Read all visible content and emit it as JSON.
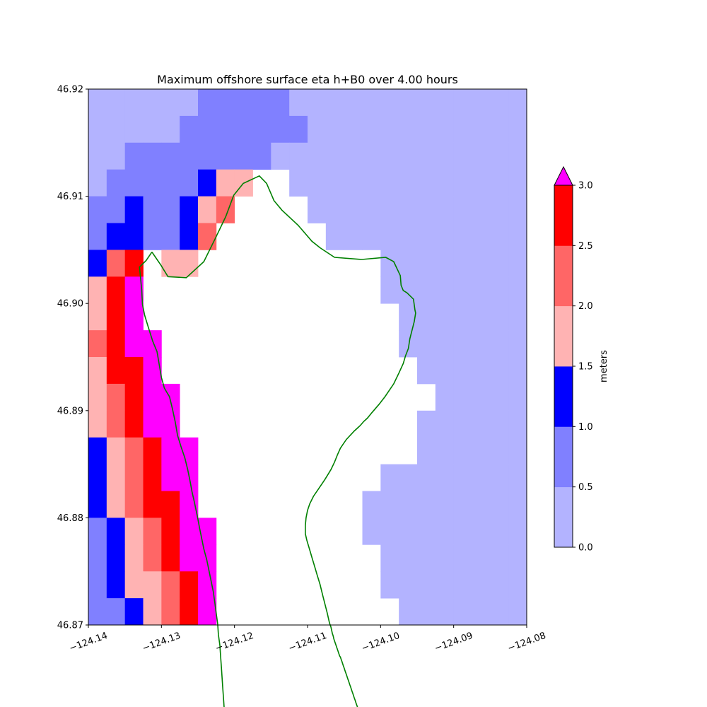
{
  "chart_data": {
    "type": "heatmap",
    "title": "Maximum offshore surface eta h+B0 over 4.00 hours",
    "xlabel": "",
    "ylabel": "",
    "xlim": [
      -124.14,
      -124.08
    ],
    "ylim": [
      46.87,
      46.92
    ],
    "x_ticks": [
      -124.14,
      -124.13,
      -124.12,
      -124.11,
      -124.1,
      -124.09,
      -124.08
    ],
    "x_tick_labels": [
      "−124.14",
      "−124.13",
      "−124.12",
      "−124.11",
      "−124.10",
      "−124.09",
      "−124.08"
    ],
    "y_ticks": [
      46.87,
      46.88,
      46.89,
      46.9,
      46.91,
      46.92
    ],
    "y_tick_labels": [
      "46.87",
      "46.88",
      "46.89",
      "46.90",
      "46.91",
      "46.92"
    ],
    "grid": false,
    "grid_cell_size_deg": 0.0025,
    "grid_columns": 24,
    "grid_rows": 20,
    "level_legend": "0=0.0-0.5, 1=0.5-1.0, 2=1.0-1.5, 3=1.5-2.0, 4=2.0-2.5, 5=2.5-3.0, 6=>3.0, -1=dry land (no data)",
    "cell_levels_rows_from_top": [
      [
        0,
        0,
        0,
        0,
        0,
        0,
        1,
        1,
        1,
        1,
        1,
        0,
        0,
        0,
        0,
        0,
        0,
        0,
        0,
        0,
        0,
        0,
        0,
        0
      ],
      [
        0,
        0,
        0,
        0,
        0,
        1,
        1,
        1,
        1,
        1,
        1,
        1,
        0,
        0,
        0,
        0,
        0,
        0,
        0,
        0,
        0,
        0,
        0,
        0
      ],
      [
        0,
        0,
        1,
        1,
        1,
        1,
        1,
        1,
        1,
        1,
        0,
        0,
        0,
        0,
        0,
        0,
        0,
        0,
        0,
        0,
        0,
        0,
        0,
        0
      ],
      [
        0,
        1,
        1,
        1,
        1,
        1,
        2,
        3,
        3,
        -1,
        -1,
        0,
        0,
        0,
        0,
        0,
        0,
        0,
        0,
        0,
        0,
        0,
        0,
        0
      ],
      [
        1,
        1,
        2,
        1,
        1,
        2,
        3,
        4,
        -1,
        -1,
        -1,
        -1,
        0,
        0,
        0,
        0,
        0,
        0,
        0,
        0,
        0,
        0,
        0,
        0
      ],
      [
        1,
        2,
        2,
        1,
        1,
        2,
        4,
        -1,
        -1,
        -1,
        -1,
        -1,
        -1,
        0,
        0,
        0,
        0,
        0,
        0,
        0,
        0,
        0,
        0,
        0
      ],
      [
        2,
        4,
        5,
        -1,
        3,
        3,
        -1,
        -1,
        -1,
        -1,
        -1,
        -1,
        -1,
        -1,
        -1,
        -1,
        0,
        0,
        0,
        0,
        0,
        0,
        0,
        0
      ],
      [
        3,
        5,
        6,
        -1,
        -1,
        -1,
        -1,
        -1,
        -1,
        -1,
        -1,
        -1,
        -1,
        -1,
        -1,
        -1,
        0,
        0,
        0,
        0,
        0,
        0,
        0,
        0
      ],
      [
        3,
        5,
        6,
        -1,
        -1,
        -1,
        -1,
        -1,
        -1,
        -1,
        -1,
        -1,
        -1,
        -1,
        -1,
        -1,
        -1,
        0,
        0,
        0,
        0,
        0,
        0,
        0
      ],
      [
        4,
        5,
        6,
        6,
        -1,
        -1,
        -1,
        -1,
        -1,
        -1,
        -1,
        -1,
        -1,
        -1,
        -1,
        -1,
        -1,
        0,
        0,
        0,
        0,
        0,
        0,
        0
      ],
      [
        3,
        5,
        5,
        6,
        -1,
        -1,
        -1,
        -1,
        -1,
        -1,
        -1,
        -1,
        -1,
        -1,
        -1,
        -1,
        -1,
        -1,
        0,
        0,
        0,
        0,
        0,
        0
      ],
      [
        3,
        4,
        5,
        6,
        6,
        -1,
        -1,
        -1,
        -1,
        -1,
        -1,
        -1,
        -1,
        -1,
        -1,
        -1,
        -1,
        -1,
        -1,
        0,
        0,
        0,
        0,
        0
      ],
      [
        3,
        4,
        5,
        6,
        6,
        -1,
        -1,
        -1,
        -1,
        -1,
        -1,
        -1,
        -1,
        -1,
        -1,
        -1,
        -1,
        -1,
        0,
        0,
        0,
        0,
        0,
        0
      ],
      [
        2,
        3,
        4,
        5,
        6,
        6,
        -1,
        -1,
        -1,
        -1,
        -1,
        -1,
        -1,
        -1,
        -1,
        -1,
        -1,
        -1,
        0,
        0,
        0,
        0,
        0,
        0
      ],
      [
        2,
        3,
        4,
        5,
        6,
        6,
        -1,
        -1,
        -1,
        -1,
        -1,
        -1,
        -1,
        -1,
        -1,
        -1,
        0,
        0,
        0,
        0,
        0,
        0,
        0,
        0
      ],
      [
        2,
        3,
        4,
        5,
        5,
        6,
        -1,
        -1,
        -1,
        -1,
        -1,
        -1,
        -1,
        -1,
        -1,
        0,
        0,
        0,
        0,
        0,
        0,
        0,
        0,
        0
      ],
      [
        1,
        2,
        3,
        4,
        5,
        6,
        6,
        -1,
        -1,
        -1,
        -1,
        -1,
        -1,
        -1,
        -1,
        0,
        0,
        0,
        0,
        0,
        0,
        0,
        0,
        0
      ],
      [
        1,
        2,
        3,
        4,
        5,
        6,
        6,
        -1,
        -1,
        -1,
        -1,
        -1,
        -1,
        -1,
        -1,
        -1,
        0,
        0,
        0,
        0,
        0,
        0,
        0,
        0
      ],
      [
        1,
        2,
        3,
        3,
        4,
        5,
        6,
        -1,
        -1,
        -1,
        -1,
        -1,
        -1,
        -1,
        -1,
        -1,
        0,
        0,
        0,
        0,
        0,
        0,
        0,
        0
      ],
      [
        1,
        1,
        2,
        3,
        4,
        5,
        6,
        -1,
        -1,
        -1,
        -1,
        -1,
        -1,
        -1,
        -1,
        -1,
        -1,
        0,
        0,
        0,
        0,
        0,
        0,
        0
      ]
    ],
    "coastline": [
      [
        -124.1313,
        46.9048
      ],
      [
        -124.1306,
        46.9041
      ],
      [
        -124.1301,
        46.9036
      ],
      [
        -124.1291,
        46.9025
      ],
      [
        -124.1266,
        46.9024
      ],
      [
        -124.1242,
        46.9039
      ],
      [
        -124.1226,
        46.9061
      ],
      [
        -124.1212,
        46.9081
      ],
      [
        -124.1201,
        46.9101
      ],
      [
        -124.1188,
        46.9112
      ],
      [
        -124.1166,
        46.9119
      ],
      [
        -124.1156,
        46.9112
      ],
      [
        -124.1146,
        46.9096
      ],
      [
        -124.1135,
        46.9087
      ],
      [
        -124.1113,
        46.9073
      ],
      [
        -124.1094,
        46.9058
      ],
      [
        -124.1083,
        46.9052
      ],
      [
        -124.1063,
        46.9043
      ],
      [
        -124.1026,
        46.9041
      ],
      [
        -124.0993,
        46.9043
      ],
      [
        -124.0982,
        46.9039
      ],
      [
        -124.0973,
        46.9026
      ],
      [
        -124.0972,
        46.9017
      ],
      [
        -124.0969,
        46.9012
      ],
      [
        -124.0964,
        46.901
      ],
      [
        -124.0955,
        46.9004
      ],
      [
        -124.0953,
        46.8994
      ],
      [
        -124.0952,
        46.8991
      ],
      [
        -124.0954,
        46.8983
      ],
      [
        -124.0957,
        46.8975
      ],
      [
        -124.096,
        46.8967
      ],
      [
        -124.0962,
        46.8958
      ],
      [
        -124.0966,
        46.8951
      ],
      [
        -124.0969,
        46.8944
      ],
      [
        -124.0975,
        46.8935
      ],
      [
        -124.0982,
        46.8925
      ],
      [
        -124.0994,
        46.8913
      ],
      [
        -124.1002,
        46.8906
      ],
      [
        -124.1012,
        46.8898
      ],
      [
        -124.1018,
        46.8893
      ],
      [
        -124.1023,
        46.889
      ],
      [
        -124.1028,
        46.8886
      ],
      [
        -124.1036,
        46.8881
      ],
      [
        -124.1047,
        46.8873
      ],
      [
        -124.1052,
        46.8868
      ],
      [
        -124.1055,
        46.8865
      ],
      [
        -124.1059,
        46.8859
      ],
      [
        -124.1063,
        46.8852
      ],
      [
        -124.1068,
        46.8845
      ],
      [
        -124.1076,
        46.8836
      ],
      [
        -124.1083,
        46.8829
      ],
      [
        -124.1092,
        46.882
      ],
      [
        -124.1097,
        46.8813
      ],
      [
        -124.11,
        46.8807
      ],
      [
        -124.1102,
        46.88
      ],
      [
        -124.1103,
        46.8793
      ],
      [
        -124.1103,
        46.8785
      ],
      [
        -124.1101,
        46.8779
      ],
      [
        -124.1097,
        46.877
      ],
      [
        -124.1094,
        46.8763
      ],
      [
        -124.109,
        46.8754
      ],
      [
        -124.1087,
        46.8747
      ],
      [
        -124.1083,
        46.8738
      ],
      [
        -124.1079,
        46.8727
      ],
      [
        -124.1076,
        46.8719
      ],
      [
        -124.1073,
        46.8711
      ],
      [
        -124.107,
        46.8702
      ],
      [
        -124.1068,
        46.8698
      ],
      [
        -124.1067,
        46.8695
      ],
      [
        -124.1066,
        46.8692
      ],
      [
        -124.1065,
        46.869
      ],
      [
        -124.1064,
        46.8687
      ],
      [
        -124.1063,
        46.8685
      ],
      [
        -124.1062,
        46.8683
      ],
      [
        -124.1061,
        46.8681
      ],
      [
        -124.106,
        46.8679
      ],
      [
        -124.1059,
        46.8677
      ],
      [
        -124.1058,
        46.8675
      ],
      [
        -124.1057,
        46.8673
      ],
      [
        -124.1056,
        46.8671
      ],
      [
        -124.1055,
        46.867
      ],
      [
        -124.1054,
        46.8668
      ],
      [
        -124.1053,
        46.8666
      ],
      [
        -124.1052,
        46.8664
      ],
      [
        -124.1051,
        46.8662
      ],
      [
        -124.105,
        46.866
      ],
      [
        -124.1049,
        46.8658
      ],
      [
        -124.1048,
        46.8656
      ],
      [
        -124.1047,
        46.8654
      ],
      [
        -124.1046,
        46.8652
      ],
      [
        -124.1045,
        46.865
      ],
      [
        -124.1044,
        46.8648
      ],
      [
        -124.1043,
        46.8646
      ],
      [
        -124.1042,
        46.8644
      ],
      [
        -124.1041,
        46.8642
      ],
      [
        -124.104,
        46.864
      ],
      [
        -124.1039,
        46.8638
      ],
      [
        -124.1038,
        46.8636
      ],
      [
        -124.1037,
        46.8634
      ],
      [
        -124.1036,
        46.8632
      ],
      [
        -124.1035,
        46.863
      ],
      [
        -124.1034,
        46.8628
      ],
      [
        -124.1033,
        46.8626
      ],
      [
        -124.1032,
        46.8624
      ],
      [
        -124.1031,
        46.8622
      ],
      [
        -124.103,
        46.862
      ],
      [
        -124.1029,
        46.8618
      ],
      [
        -124.1028,
        46.8616
      ],
      [
        -124.1027,
        46.8614
      ],
      [
        -124.1026,
        46.8612
      ],
      [
        -124.1025,
        46.861
      ]
    ],
    "coastline_west": [
      [
        -124.1313,
        46.9048
      ],
      [
        -124.1321,
        46.904
      ],
      [
        -124.133,
        46.9034
      ],
      [
        -124.1327,
        46.9013
      ],
      [
        -124.1326,
        46.8999
      ],
      [
        -124.1323,
        46.8989
      ],
      [
        -124.1318,
        46.8978
      ],
      [
        -124.1312,
        46.8965
      ],
      [
        -124.1306,
        46.8955
      ],
      [
        -124.1303,
        46.8943
      ],
      [
        -124.13,
        46.8931
      ],
      [
        -124.1296,
        46.8921
      ],
      [
        -124.1289,
        46.8913
      ],
      [
        -124.1285,
        46.8902
      ],
      [
        -124.1281,
        46.8889
      ],
      [
        -124.1278,
        46.8877
      ],
      [
        -124.1273,
        46.8866
      ],
      [
        -124.1268,
        46.8856
      ],
      [
        -124.1264,
        46.8845
      ],
      [
        -124.1261,
        46.8835
      ],
      [
        -124.1258,
        46.8824
      ],
      [
        -124.1255,
        46.8815
      ],
      [
        -124.1251,
        46.8802
      ],
      [
        -124.1248,
        46.8791
      ],
      [
        -124.1245,
        46.8781
      ],
      [
        -124.1242,
        46.8771
      ],
      [
        -124.1238,
        46.8761
      ],
      [
        -124.1235,
        46.8751
      ],
      [
        -124.1232,
        46.8741
      ],
      [
        -124.1229,
        46.8731
      ],
      [
        -124.1227,
        46.8721
      ],
      [
        -124.1225,
        46.8711
      ],
      [
        -124.1223,
        46.8701
      ],
      [
        -124.1222,
        46.8691
      ],
      [
        -124.122,
        46.8681
      ],
      [
        -124.1219,
        46.8671
      ],
      [
        -124.1218,
        46.8661
      ],
      [
        -124.1217,
        46.8651
      ],
      [
        -124.1216,
        46.8641
      ],
      [
        -124.1215,
        46.8631
      ],
      [
        -124.1214,
        46.8621
      ],
      [
        -124.1213,
        46.8611
      ],
      [
        -124.1212,
        46.8601
      ],
      [
        -124.1211,
        46.8591
      ]
    ],
    "colorbar": {
      "label": "meters",
      "ticks": [
        0.0,
        0.5,
        1.0,
        1.5,
        2.0,
        2.5,
        3.0
      ],
      "tick_labels": [
        "0.0",
        "0.5",
        "1.0",
        "1.5",
        "2.0",
        "2.5",
        "3.0"
      ],
      "levels": [
        0.0,
        0.5,
        1.0,
        1.5,
        2.0,
        2.5,
        3.0
      ],
      "extend": "max",
      "colors": [
        "#b3b3ff",
        "#8080ff",
        "#0000ff",
        "#ffb3b3",
        "#ff6666",
        "#ff0000"
      ],
      "over_color": "#ff00ff"
    },
    "coastline_color": "#008000"
  }
}
